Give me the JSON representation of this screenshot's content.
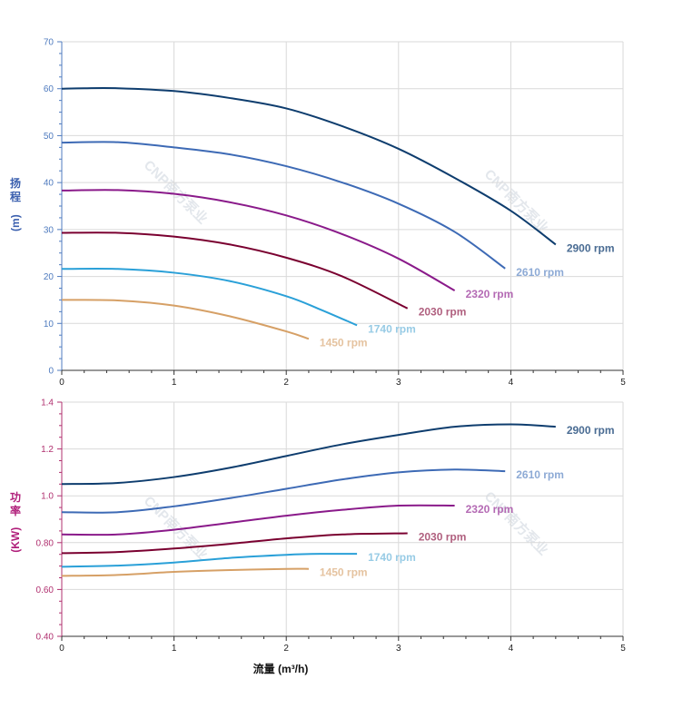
{
  "chart_data": [
    {
      "type": "line",
      "ylabel": "扬程 (m)",
      "ylabel_chars": [
        "扬",
        "程",
        "(",
        "m",
        ")"
      ],
      "xlim": [
        0,
        5
      ],
      "ylim": [
        0,
        70
      ],
      "x_ticks": [
        "0",
        "1",
        "2",
        "3",
        "4",
        "5"
      ],
      "y_ticks": [
        "0",
        "10",
        "20",
        "30",
        "40",
        "50",
        "60",
        "70"
      ],
      "grid": true,
      "series": [
        {
          "name": "2900 rpm",
          "color": "#0e3d6e",
          "label_color": "#4a6c93",
          "x": [
            0,
            0.2,
            0.5,
            1.0,
            1.5,
            2.0,
            2.5,
            3.0,
            3.5,
            4.0,
            4.4
          ],
          "y": [
            60,
            60.1,
            60.1,
            59.5,
            58.0,
            55.8,
            52.0,
            47.2,
            41.0,
            34.0,
            26.8
          ]
        },
        {
          "name": "2610 rpm",
          "color": "#3d6ab5",
          "label_color": "#8daad5",
          "x": [
            0,
            0.5,
            1.0,
            1.5,
            2.0,
            2.5,
            3.0,
            3.5,
            3.95
          ],
          "y": [
            48.5,
            48.6,
            47.5,
            46.0,
            43.5,
            40.0,
            35.5,
            29.5,
            21.7
          ]
        },
        {
          "name": "2320 rpm",
          "color": "#8a1a8a",
          "label_color": "#b46ab4",
          "x": [
            0,
            0.5,
            1.0,
            1.5,
            2.0,
            2.5,
            3.0,
            3.5
          ],
          "y": [
            38.3,
            38.4,
            37.6,
            35.8,
            33.0,
            29.0,
            23.8,
            17.0
          ]
        },
        {
          "name": "2030 rpm",
          "color": "#7a0030",
          "label_color": "#b0607f",
          "x": [
            0,
            0.5,
            1.0,
            1.5,
            2.0,
            2.5,
            3.08
          ],
          "y": [
            29.3,
            29.3,
            28.5,
            26.8,
            24.0,
            20.0,
            13.2
          ]
        },
        {
          "name": "1740 rpm",
          "color": "#2aa0d8",
          "label_color": "#97cbe5",
          "x": [
            0,
            0.5,
            1.0,
            1.5,
            2.0,
            2.3,
            2.63
          ],
          "y": [
            21.6,
            21.6,
            20.8,
            19.0,
            15.8,
            13.0,
            9.6
          ]
        },
        {
          "name": "1450 rpm",
          "color": "#d6a066",
          "label_color": "#e5c3a0",
          "x": [
            0,
            0.5,
            1.0,
            1.5,
            2.0,
            2.2
          ],
          "y": [
            15.0,
            14.9,
            13.8,
            11.5,
            8.3,
            6.7
          ]
        }
      ]
    },
    {
      "type": "line",
      "ylabel": "功率 (KW)",
      "ylabel_chars": [
        "功",
        "率",
        "(",
        "KW",
        ")"
      ],
      "xlabel": "流量 (m³/h)",
      "xlim": [
        0,
        5
      ],
      "ylim": [
        0.4,
        1.4
      ],
      "x_ticks": [
        "0",
        "1",
        "2",
        "3",
        "4",
        "5"
      ],
      "y_ticks": [
        "0.40",
        "0.60",
        "0.80",
        "1.0",
        "1.2",
        "1.4"
      ],
      "grid": true,
      "series": [
        {
          "name": "2900 rpm",
          "color": "#0e3d6e",
          "label_color": "#4a6c93",
          "x": [
            0,
            0.5,
            1.0,
            1.5,
            2.0,
            2.5,
            3.0,
            3.5,
            4.0,
            4.4
          ],
          "y": [
            1.05,
            1.055,
            1.08,
            1.12,
            1.17,
            1.22,
            1.26,
            1.295,
            1.305,
            1.295
          ]
        },
        {
          "name": "2610 rpm",
          "color": "#3d6ab5",
          "label_color": "#8daad5",
          "x": [
            0,
            0.5,
            1.0,
            1.5,
            2.0,
            2.5,
            3.0,
            3.5,
            3.95
          ],
          "y": [
            0.93,
            0.93,
            0.955,
            0.99,
            1.03,
            1.07,
            1.1,
            1.112,
            1.105
          ]
        },
        {
          "name": "2320 rpm",
          "color": "#8a1a8a",
          "label_color": "#b46ab4",
          "x": [
            0,
            0.5,
            1.0,
            1.5,
            2.0,
            2.5,
            3.0,
            3.5
          ],
          "y": [
            0.835,
            0.835,
            0.855,
            0.885,
            0.915,
            0.94,
            0.958,
            0.958
          ]
        },
        {
          "name": "2030 rpm",
          "color": "#7a0030",
          "label_color": "#b0607f",
          "x": [
            0,
            0.5,
            1.0,
            1.5,
            2.0,
            2.5,
            3.08
          ],
          "y": [
            0.755,
            0.76,
            0.775,
            0.795,
            0.818,
            0.835,
            0.84
          ]
        },
        {
          "name": "1740 rpm",
          "color": "#2aa0d8",
          "label_color": "#97cbe5",
          "x": [
            0,
            0.5,
            1.0,
            1.5,
            2.0,
            2.3,
            2.63
          ],
          "y": [
            0.697,
            0.702,
            0.715,
            0.735,
            0.748,
            0.752,
            0.752
          ]
        },
        {
          "name": "1450 rpm",
          "color": "#d6a066",
          "label_color": "#e5c3a0",
          "x": [
            0,
            0.5,
            1.0,
            1.5,
            2.0,
            2.2
          ],
          "y": [
            0.658,
            0.662,
            0.675,
            0.683,
            0.688,
            0.688
          ]
        }
      ]
    }
  ],
  "watermark": {
    "text": "CNP南方泵业",
    "color": "#e3e7ec"
  },
  "colors": {
    "grid": "#d9d9d9",
    "axis_head": "#4f7bbf",
    "axis_power": "#b0306f"
  }
}
